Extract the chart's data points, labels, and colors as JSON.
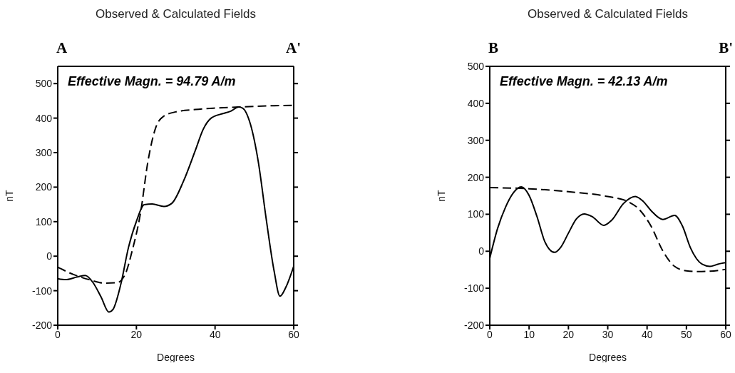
{
  "chart_data": [
    {
      "type": "line",
      "title": "Observed & Calculated Fields",
      "xlabel": "Degrees",
      "ylabel": "nT",
      "annotations": [
        "A",
        "A'",
        "Effective Magn. = 94.79 A/m"
      ],
      "xlim": [
        0,
        60
      ],
      "xticks": [
        0,
        20,
        40,
        60
      ],
      "ylim": [
        -200,
        550
      ],
      "yticks": [
        -200,
        -100,
        0,
        100,
        200,
        300,
        400,
        500
      ],
      "marker": "none",
      "series": [
        {
          "color": "#000000",
          "line_style": "solid",
          "x": [
            0,
            2,
            5,
            7,
            9,
            11,
            13,
            14,
            16,
            18,
            20,
            22,
            24,
            27,
            29,
            32,
            35,
            37,
            39,
            42,
            44,
            46,
            47,
            49,
            51,
            53,
            55,
            56.5,
            58,
            60
          ],
          "values": [
            -65,
            -68,
            -60,
            -56,
            -77,
            -118,
            -162,
            -155,
            -83,
            26,
            101,
            149,
            151,
            144,
            153,
            218,
            307,
            368,
            400,
            413,
            420,
            432,
            429,
            382,
            273,
            108,
            -42,
            -116,
            -90,
            -29
          ]
        },
        {
          "color": "#000000",
          "line_style": "dashed",
          "x": [
            0,
            4,
            8,
            12,
            15,
            17,
            19,
            21,
            23,
            25,
            27,
            30,
            35,
            40,
            46,
            50,
            55,
            60
          ],
          "values": [
            -32,
            -53,
            -68,
            -78,
            -77,
            -56,
            19,
            122,
            279,
            375,
            406,
            418,
            425,
            429,
            432,
            434,
            436,
            437
          ]
        }
      ]
    },
    {
      "type": "line",
      "title": "Observed & Calculated Fields",
      "xlabel": "Degrees",
      "ylabel": "nT",
      "annotations": [
        "B",
        "B'",
        "Effective Magn. = 42.13 A/m"
      ],
      "xlim": [
        0,
        60
      ],
      "xticks": [
        0,
        10,
        20,
        30,
        40,
        50,
        60
      ],
      "ylim": [
        -200,
        500
      ],
      "yticks": [
        -200,
        -100,
        0,
        100,
        200,
        300,
        400,
        500
      ],
      "marker": "none",
      "series": [
        {
          "color": "#000000",
          "line_style": "solid",
          "x": [
            0,
            2,
            4,
            6,
            8,
            10,
            12,
            14,
            16.5,
            18,
            20,
            22,
            24,
            26,
            29,
            31,
            34,
            37,
            39,
            41,
            44,
            47,
            49,
            51,
            54,
            56,
            58,
            60
          ],
          "values": [
            -19,
            62,
            119,
            158,
            174,
            151,
            94,
            26,
            -3,
            10,
            49,
            87,
            101,
            94,
            70,
            84,
            129,
            148,
            135,
            110,
            86,
            97,
            68,
            10,
            -35,
            -41,
            -35,
            -31
          ]
        },
        {
          "color": "#000000",
          "line_style": "dashed",
          "x": [
            0,
            10,
            20,
            30,
            35,
            38,
            41,
            44,
            47,
            50,
            53,
            56,
            60
          ],
          "values": [
            172,
            169,
            161,
            148,
            135,
            113,
            68,
            1,
            -41,
            -53,
            -55,
            -54,
            -49
          ]
        }
      ]
    }
  ]
}
